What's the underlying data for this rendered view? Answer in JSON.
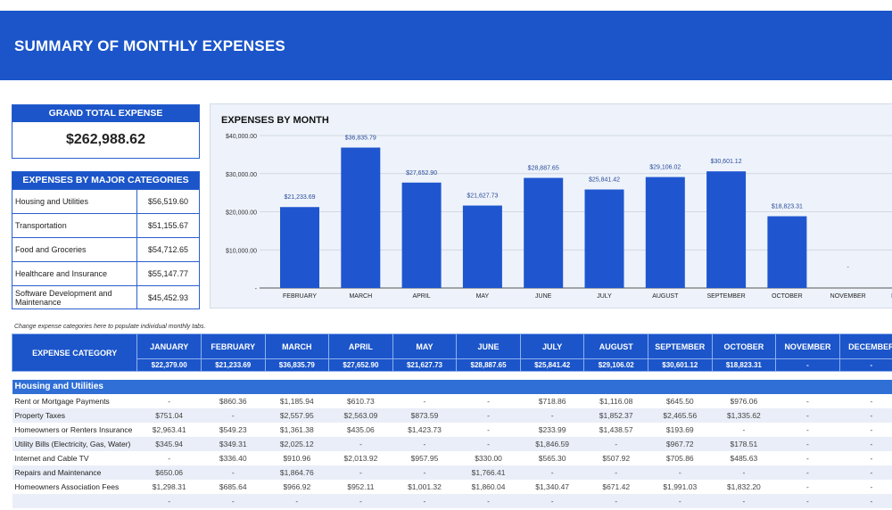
{
  "title": "SUMMARY OF MONTHLY EXPENSES",
  "grand_total": {
    "label": "GRAND TOTAL EXPENSE",
    "value": "$262,988.62"
  },
  "categories_box": {
    "label": "EXPENSES BY MAJOR CATEGORIES",
    "items": [
      {
        "name": "Housing and Utilities",
        "value": "$56,519.60"
      },
      {
        "name": "Transportation",
        "value": "$51,155.67"
      },
      {
        "name": "Food and Groceries",
        "value": "$54,712.65"
      },
      {
        "name": "Healthcare and Insurance",
        "value": "$55,147.77"
      },
      {
        "name": "Software Development and Maintenance",
        "value": "$45,452.93"
      }
    ]
  },
  "colors": {
    "brand": "#1b55c9",
    "bar": "#1f56cf",
    "section": "#2f6fd6"
  },
  "chart_data": {
    "type": "bar",
    "title": "EXPENSES BY MONTH",
    "xlabel": "",
    "ylabel": "",
    "ylim": [
      0,
      40000
    ],
    "yticks": [
      "-",
      "$10,000.00",
      "$20,000.00",
      "$30,000.00",
      "$40,000.00"
    ],
    "grid": true,
    "categories": [
      "FEBRUARY",
      "MARCH",
      "APRIL",
      "MAY",
      "JUNE",
      "JULY",
      "AUGUST",
      "SEPTEMBER",
      "OCTOBER",
      "NOVEMBER",
      "DECEMBER"
    ],
    "values": [
      21233.69,
      36835.79,
      27652.9,
      21627.73,
      28887.65,
      25841.42,
      29106.02,
      30601.12,
      18823.31,
      0,
      null
    ],
    "labels": [
      "$21,233.69",
      "$36,835.79",
      "$27,652.90",
      "$21,627.73",
      "$28,887.65",
      "$25,841.42",
      "$29,106.02",
      "$30,601.12",
      "$18,823.31",
      "-",
      ""
    ]
  },
  "note": "Change expense categories here to populate individual monthly tabs.",
  "table": {
    "category_header": "EXPENSE CATEGORY",
    "months": [
      "JANUARY",
      "FEBRUARY",
      "MARCH",
      "APRIL",
      "MAY",
      "JUNE",
      "JULY",
      "AUGUST",
      "SEPTEMBER",
      "OCTOBER",
      "NOVEMBER",
      "DECEMBER"
    ],
    "totals": [
      "$22,379.00",
      "$21,233.69",
      "$36,835.79",
      "$27,652.90",
      "$21,627.73",
      "$28,887.65",
      "$25,841.42",
      "$29,106.02",
      "$30,601.12",
      "$18,823.31",
      "-",
      "-"
    ],
    "section": "Housing and Utilities",
    "rows": [
      {
        "name": "Rent or Mortgage Payments",
        "values": [
          "-",
          "$860.36",
          "$1,185.94",
          "$610.73",
          "-",
          "-",
          "$718.86",
          "$1,116.08",
          "$645.50",
          "$976.06",
          "-",
          "-"
        ]
      },
      {
        "name": "Property Taxes",
        "values": [
          "$751.04",
          "-",
          "$2,557.95",
          "$2,563.09",
          "$873.59",
          "-",
          "-",
          "$1,852.37",
          "$2,465.56",
          "$1,335.62",
          "-",
          "-"
        ]
      },
      {
        "name": "Homeowners or Renters Insurance",
        "values": [
          "$2,963.41",
          "$549.23",
          "$1,361.38",
          "$435.06",
          "$1,423.73",
          "-",
          "$233.99",
          "$1,438.57",
          "$193.69",
          "-",
          "-",
          "-"
        ]
      },
      {
        "name": "Utility Bills (Electricity, Gas, Water)",
        "values": [
          "$345.94",
          "$349.31",
          "$2,025.12",
          "-",
          "-",
          "-",
          "$1,846.59",
          "-",
          "$967.72",
          "$178.51",
          "-",
          "-"
        ]
      },
      {
        "name": "Internet and Cable TV",
        "values": [
          "-",
          "$336.40",
          "$910.96",
          "$2,013.92",
          "$957.95",
          "$330.00",
          "$565.30",
          "$507.92",
          "$705.86",
          "$485.63",
          "-",
          "-"
        ]
      },
      {
        "name": "Repairs and Maintenance",
        "values": [
          "$650.06",
          "-",
          "$1,864.76",
          "-",
          "-",
          "$1,766.41",
          "-",
          "-",
          "-",
          "-",
          "-",
          "-"
        ]
      },
      {
        "name": "Homeowners Association Fees",
        "values": [
          "$1,298.31",
          "$685.64",
          "$966.92",
          "$952.11",
          "$1,001.32",
          "$1,860.04",
          "$1,340.47",
          "$671.42",
          "$1,991.03",
          "$1,832.20",
          "-",
          "-"
        ]
      },
      {
        "name": "",
        "values": [
          "-",
          "-",
          "-",
          "-",
          "-",
          "-",
          "-",
          "-",
          "-",
          "-",
          "-",
          "-"
        ]
      }
    ]
  }
}
